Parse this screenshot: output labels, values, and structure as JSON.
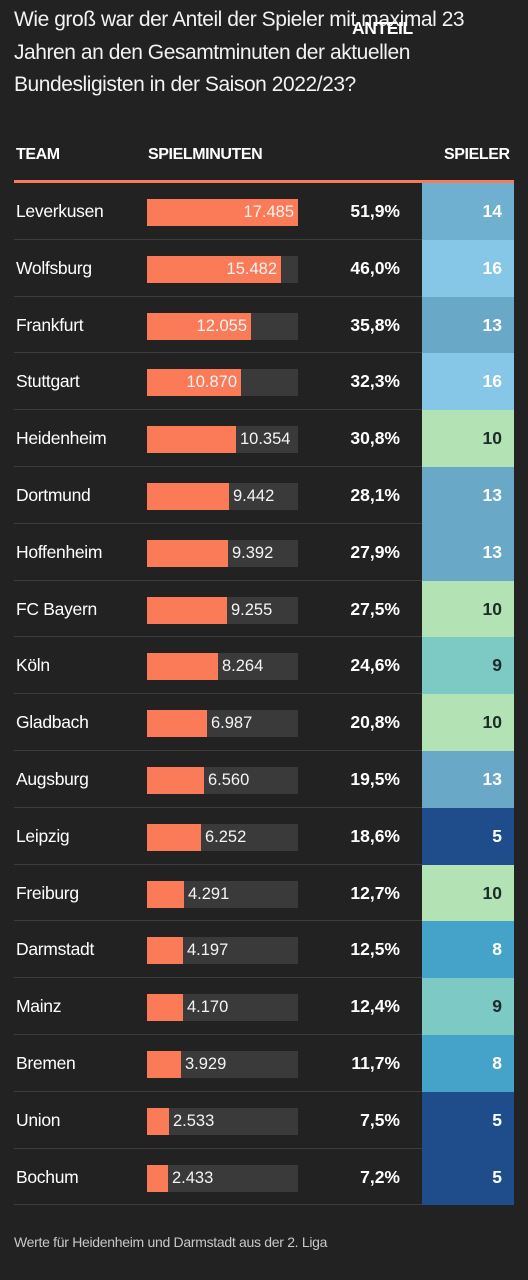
{
  "title": "Wie groß war der Anteil der Spieler mit maximal 23 Jahren an den Gesamtminuten der aktuellen Bundesligisten in der Saison 2022/23?",
  "headers": {
    "team": "TEAM",
    "minutes": "SPIELMINUTEN",
    "share": "ANTEIL",
    "players": "SPIELER"
  },
  "footnote": "Werte für Heidenheim und Darmstadt aus der 2. Liga",
  "colors": {
    "bar": "#fb7b58",
    "bar_track": "#3a3a3a",
    "accent_line": "#f47b5c",
    "players_scale": {
      "5": "#1f4d8c",
      "8": "#45a3c9",
      "9": "#7dc9c4",
      "10": "#b3e3b4",
      "13": "#6aa8c8",
      "14": "#6fb0d0",
      "16": "#86c6e6"
    }
  },
  "chart_data": {
    "type": "table",
    "columns": [
      "TEAM",
      "SPIELMINUTEN",
      "ANTEIL",
      "SPIELER"
    ],
    "minutes_max": 17485,
    "rows": [
      {
        "team": "Leverkusen",
        "minutes": 17485,
        "minutes_label": "17.485",
        "share": "51,9%",
        "players": "14"
      },
      {
        "team": "Wolfsburg",
        "minutes": 15482,
        "minutes_label": "15.482",
        "share": "46,0%",
        "players": "16"
      },
      {
        "team": "Frankfurt",
        "minutes": 12055,
        "minutes_label": "12.055",
        "share": "35,8%",
        "players": "13"
      },
      {
        "team": "Stuttgart",
        "minutes": 10870,
        "minutes_label": "10.870",
        "share": "32,3%",
        "players": "16"
      },
      {
        "team": "Heidenheim",
        "minutes": 10354,
        "minutes_label": "10.354",
        "share": "30,8%",
        "players": "10"
      },
      {
        "team": "Dortmund",
        "minutes": 9442,
        "minutes_label": "9.442",
        "share": "28,1%",
        "players": "13"
      },
      {
        "team": "Hoffenheim",
        "minutes": 9392,
        "minutes_label": "9.392",
        "share": "27,9%",
        "players": "13"
      },
      {
        "team": "FC Bayern",
        "minutes": 9255,
        "minutes_label": "9.255",
        "share": "27,5%",
        "players": "10"
      },
      {
        "team": "Köln",
        "minutes": 8264,
        "minutes_label": "8.264",
        "share": "24,6%",
        "players": "9"
      },
      {
        "team": "Gladbach",
        "minutes": 6987,
        "minutes_label": "6.987",
        "share": "20,8%",
        "players": "10"
      },
      {
        "team": "Augsburg",
        "minutes": 6560,
        "minutes_label": "6.560",
        "share": "19,5%",
        "players": "13"
      },
      {
        "team": "Leipzig",
        "minutes": 6252,
        "minutes_label": "6.252",
        "share": "18,6%",
        "players": "5"
      },
      {
        "team": "Freiburg",
        "minutes": 4291,
        "minutes_label": "4.291",
        "share": "12,7%",
        "players": "10"
      },
      {
        "team": "Darmstadt",
        "minutes": 4197,
        "minutes_label": "4.197",
        "share": "12,5%",
        "players": "8"
      },
      {
        "team": "Mainz",
        "minutes": 4170,
        "minutes_label": "4.170",
        "share": "12,4%",
        "players": "9"
      },
      {
        "team": "Bremen",
        "minutes": 3929,
        "minutes_label": "3.929",
        "share": "11,7%",
        "players": "8"
      },
      {
        "team": "Union",
        "minutes": 2533,
        "minutes_label": "2.533",
        "share": "7,5%",
        "players": "5"
      },
      {
        "team": "Bochum",
        "minutes": 2433,
        "minutes_label": "2.433",
        "share": "7,2%",
        "players": "5"
      }
    ]
  }
}
